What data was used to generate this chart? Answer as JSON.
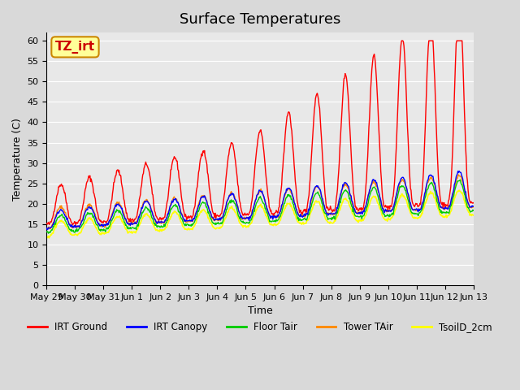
{
  "title": "Surface Temperatures",
  "xlabel": "Time",
  "ylabel": "Temperature (C)",
  "ylim": [
    0,
    62
  ],
  "yticks": [
    0,
    5,
    10,
    15,
    20,
    25,
    30,
    35,
    40,
    45,
    50,
    55,
    60
  ],
  "xtick_labels": [
    "May 29",
    "May 30",
    "May 31",
    "Jun 1",
    "Jun 2",
    "Jun 3",
    "Jun 4",
    "Jun 5",
    "Jun 6",
    "Jun 7",
    "Jun 8",
    "Jun 9",
    "Jun 10",
    "Jun 11",
    "Jun 12",
    "Jun 13"
  ],
  "annotation_text": "TZ_irt",
  "annotation_bg": "#ffff99",
  "annotation_border": "#cc8800",
  "annotation_text_color": "#cc0000",
  "background_color": "#e8e8e8",
  "series": {
    "IRT_Ground": {
      "color": "#ff0000",
      "label": "IRT Ground"
    },
    "IRT_Canopy": {
      "color": "#0000ff",
      "label": "IRT Canopy"
    },
    "Floor_Tair": {
      "color": "#00cc00",
      "label": "Floor Tair"
    },
    "Tower_TAir": {
      "color": "#ff8800",
      "label": "Tower TAir"
    },
    "TsoilD_2cm": {
      "color": "#ffff00",
      "label": "TsoilD_2cm"
    }
  }
}
